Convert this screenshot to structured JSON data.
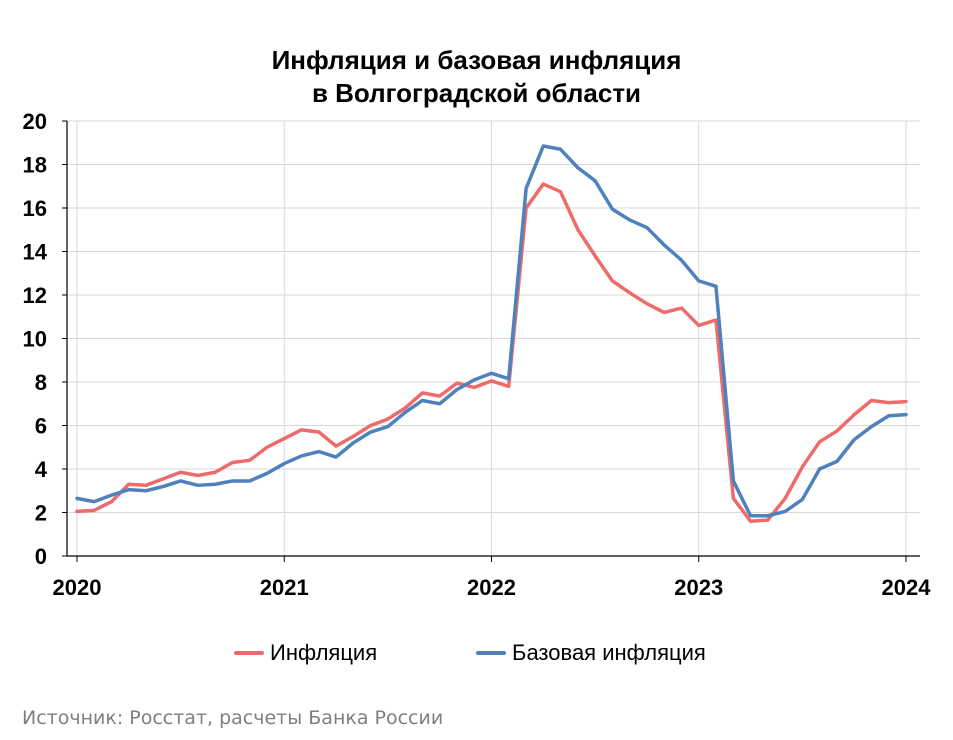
{
  "chart_data": {
    "type": "line",
    "title_lines": [
      "Инфляция и базовая инфляция",
      "в Волгоградской области"
    ],
    "xlabel": "",
    "ylabel": "",
    "ylim": [
      0,
      20
    ],
    "yticks": [
      0,
      2,
      4,
      6,
      8,
      10,
      12,
      14,
      16,
      18,
      20
    ],
    "xticks": [
      2020,
      2021,
      2022,
      2023,
      2024
    ],
    "xlim": [
      2020,
      2024
    ],
    "grid": true,
    "legend_position": "bottom",
    "x": [
      2020.0,
      2020.083,
      2020.167,
      2020.25,
      2020.333,
      2020.417,
      2020.5,
      2020.583,
      2020.667,
      2020.75,
      2020.833,
      2020.917,
      2021.0,
      2021.083,
      2021.167,
      2021.25,
      2021.333,
      2021.417,
      2021.5,
      2021.583,
      2021.667,
      2021.75,
      2021.833,
      2021.917,
      2022.0,
      2022.083,
      2022.167,
      2022.25,
      2022.333,
      2022.417,
      2022.5,
      2022.583,
      2022.667,
      2022.75,
      2022.833,
      2022.917,
      2023.0,
      2023.083,
      2023.167,
      2023.25,
      2023.333,
      2023.417,
      2023.5,
      2023.583,
      2023.667,
      2023.75,
      2023.833,
      2023.917,
      2024.0
    ],
    "series": [
      {
        "name": "Инфляция",
        "color": "#ef6b6b",
        "values": [
          2.05,
          2.1,
          2.5,
          3.3,
          3.25,
          3.55,
          3.85,
          3.7,
          3.85,
          4.3,
          4.4,
          5.0,
          5.4,
          5.8,
          5.7,
          5.05,
          5.5,
          6.0,
          6.3,
          6.8,
          7.5,
          7.35,
          7.95,
          7.75,
          8.05,
          7.8,
          16.0,
          17.1,
          16.75,
          15.0,
          13.8,
          12.65,
          12.1,
          11.6,
          11.2,
          11.4,
          10.6,
          10.85,
          2.65,
          1.6,
          1.65,
          2.65,
          4.1,
          5.25,
          5.75,
          6.5,
          7.15,
          7.05,
          7.1
        ]
      },
      {
        "name": "Базовая инфляция",
        "color": "#4f81bd",
        "values": [
          2.65,
          2.5,
          2.8,
          3.05,
          3.0,
          3.2,
          3.45,
          3.25,
          3.3,
          3.45,
          3.45,
          3.8,
          4.25,
          4.6,
          4.8,
          4.55,
          5.2,
          5.7,
          5.95,
          6.6,
          7.15,
          7.0,
          7.65,
          8.1,
          8.4,
          8.15,
          16.9,
          18.85,
          18.7,
          17.85,
          17.25,
          15.95,
          15.45,
          15.1,
          14.3,
          13.6,
          12.65,
          12.4,
          3.45,
          1.85,
          1.85,
          2.05,
          2.6,
          4.0,
          4.35,
          5.35,
          5.95,
          6.45,
          6.5
        ]
      }
    ]
  },
  "source": "Источник: Росстат, расчеты Банка России"
}
